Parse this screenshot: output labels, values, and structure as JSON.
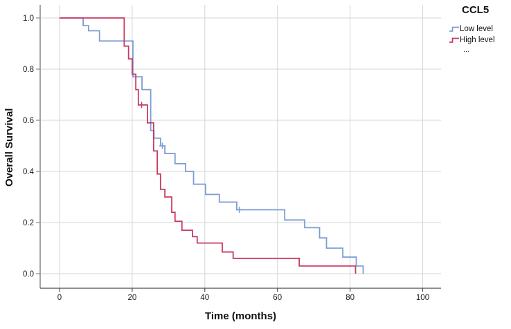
{
  "legend": {
    "title": "CCL5",
    "items": [
      {
        "label": "Low level",
        "series": "low"
      },
      {
        "label": "High level",
        "series": "high"
      }
    ],
    "overflow": "..."
  },
  "chart_data": {
    "type": "line",
    "subtype": "kaplan-meier-step",
    "title": "CCL5",
    "xlabel": "Time (months)",
    "ylabel": "Overall Survival",
    "xticks": [
      0,
      20,
      40,
      60,
      80,
      100
    ],
    "yticks": [
      0.0,
      0.2,
      0.4,
      0.6,
      0.8,
      1.0
    ],
    "ytick_labels": [
      "0.0",
      "0.2",
      "0.4",
      "0.6",
      "0.8",
      "1.0"
    ],
    "xlim": [
      -5.3,
      105.1
    ],
    "ylim": [
      -0.057,
      1.052
    ],
    "grid": true,
    "legend_position": "top-right",
    "series": [
      {
        "name": "Low level",
        "key": "low",
        "color": "#7C9DD4",
        "steps": [
          [
            0,
            1.0
          ],
          [
            6.5,
            0.97
          ],
          [
            8,
            0.95
          ],
          [
            11,
            0.91
          ],
          [
            20.2,
            0.77
          ],
          [
            22.7,
            0.72
          ],
          [
            25.1,
            0.56
          ],
          [
            26,
            0.53
          ],
          [
            27.8,
            0.5
          ],
          [
            29,
            0.47
          ],
          [
            31.8,
            0.43
          ],
          [
            34.7,
            0.4
          ],
          [
            36.9,
            0.35
          ],
          [
            40.2,
            0.31
          ],
          [
            44,
            0.28
          ],
          [
            48.8,
            0.25
          ],
          [
            62,
            0.21
          ],
          [
            67.5,
            0.18
          ],
          [
            71.6,
            0.14
          ],
          [
            73.5,
            0.1
          ],
          [
            78,
            0.065
          ],
          [
            81.7,
            0.03
          ],
          [
            83.6,
            0.0
          ]
        ],
        "censored": [
          [
            28.3,
            0.5
          ],
          [
            49.5,
            0.25
          ]
        ]
      },
      {
        "name": "High level",
        "key": "high",
        "color": "#C93A60",
        "steps": [
          [
            0,
            1.0
          ],
          [
            17.8,
            0.89
          ],
          [
            19,
            0.84
          ],
          [
            20,
            0.78
          ],
          [
            21,
            0.72
          ],
          [
            21.7,
            0.66
          ],
          [
            24.2,
            0.59
          ],
          [
            25.9,
            0.48
          ],
          [
            26.9,
            0.39
          ],
          [
            27.8,
            0.33
          ],
          [
            29,
            0.3
          ],
          [
            30.9,
            0.24
          ],
          [
            31.8,
            0.205
          ],
          [
            33.7,
            0.17
          ],
          [
            36.6,
            0.145
          ],
          [
            37.9,
            0.12
          ],
          [
            44.8,
            0.085
          ],
          [
            47.8,
            0.06
          ],
          [
            66,
            0.03
          ],
          [
            81.5,
            0.0
          ]
        ],
        "censored": [
          [
            22.6,
            0.66
          ]
        ]
      }
    ],
    "style": {
      "grid_color": "#D6D6D6",
      "y_axis_color": "#8C8C8C",
      "x_axis_color": "#4D4D4D",
      "tick_label_color": "#1A1A1A"
    }
  }
}
